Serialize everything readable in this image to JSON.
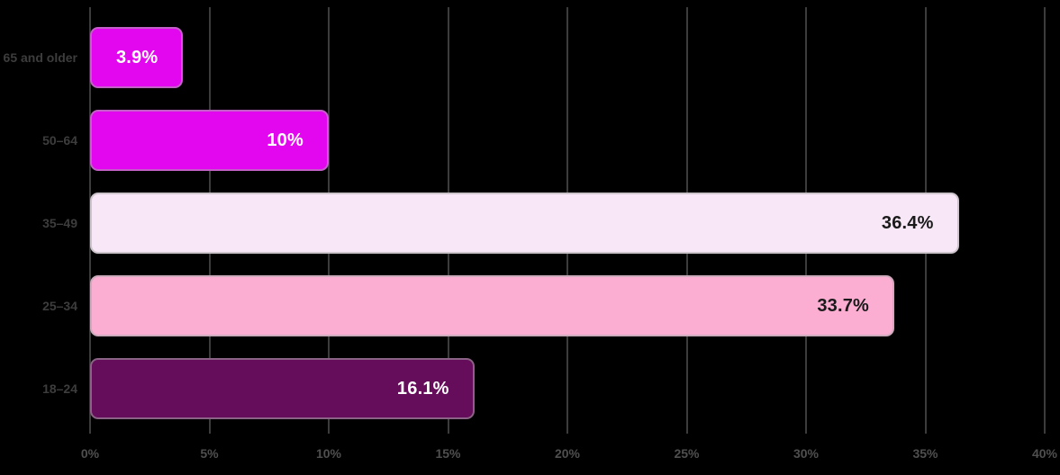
{
  "chart_data": {
    "type": "bar",
    "orientation": "horizontal",
    "title": "",
    "xlabel": "",
    "ylabel": "",
    "categories": [
      "65 and older",
      "50–64",
      "35–49",
      "25–34",
      "18–24"
    ],
    "values": [
      3.9,
      10,
      36.4,
      33.7,
      16.1
    ],
    "value_labels": [
      "3.9%",
      "10%",
      "36.4%",
      "33.7%",
      "16.1%"
    ],
    "bar_colors": [
      "#E207EE",
      "#E207EE",
      "#F8E7F6",
      "#FBAED2",
      "#650C5A"
    ],
    "value_label_colors": [
      "#FFFFFF",
      "#FFFFFF",
      "#1A1A1A",
      "#1A1A1A",
      "#FFFFFF"
    ],
    "xlim": [
      0,
      40
    ],
    "x_ticks": [
      "0%",
      "5%",
      "10%",
      "15%",
      "20%",
      "25%",
      "30%",
      "35%",
      "40%"
    ],
    "grid": "vertical-gridlines",
    "legend": "none",
    "background_color": "#000000",
    "gridline_color": "#3c3c3c",
    "axis_text_color": "#4f4f4f",
    "category_text_color": "#3d3d3d"
  }
}
